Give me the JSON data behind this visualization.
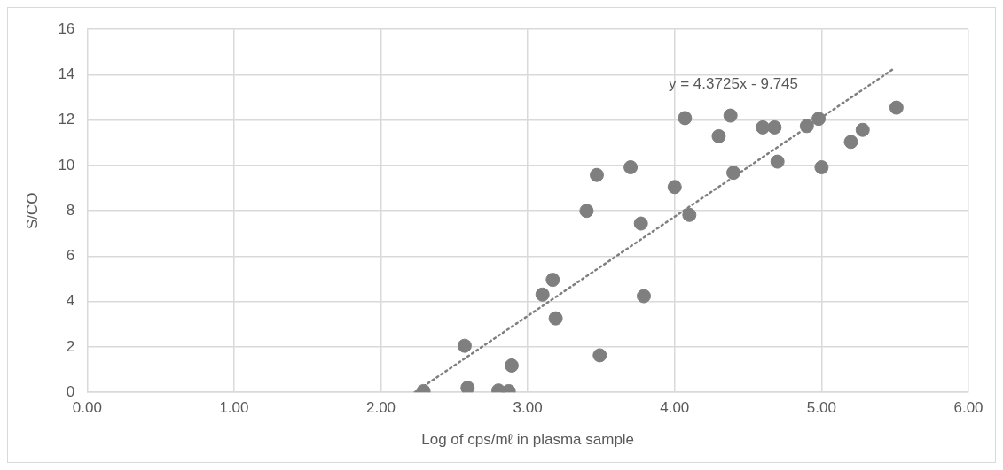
{
  "chart_data": {
    "type": "scatter",
    "xlabel": "Log of cps/mℓ in plasma sample",
    "ylabel": "S/CO",
    "xlim": [
      0,
      6
    ],
    "xticks": [
      {
        "value": 0,
        "label": "0.00"
      },
      {
        "value": 1,
        "label": "1.00"
      },
      {
        "value": 2,
        "label": "2.00"
      },
      {
        "value": 3,
        "label": "3.00"
      },
      {
        "value": 4,
        "label": "4.00"
      },
      {
        "value": 5,
        "label": "5.00"
      },
      {
        "value": 6,
        "label": "6.00"
      }
    ],
    "ylim": [
      0,
      16
    ],
    "yticks": [
      0,
      2,
      4,
      6,
      8,
      10,
      12,
      14,
      16
    ],
    "grid": true,
    "legend": false,
    "marker": "circle",
    "series": [
      {
        "color": "#7f7f7f",
        "x": [
          2.29,
          2.57,
          2.59,
          2.8,
          2.87,
          2.89,
          3.1,
          3.17,
          3.19,
          3.4,
          3.49,
          3.47,
          3.7,
          3.77,
          3.79,
          4.0,
          4.07,
          4.1,
          4.3,
          4.38,
          4.4,
          4.6,
          4.68,
          4.7,
          4.9,
          4.98,
          5.0,
          5.2,
          5.28,
          5.51
        ],
        "values": [
          0.05,
          2.05,
          0.2,
          0.08,
          0.05,
          1.18,
          4.31,
          4.96,
          3.26,
          8.0,
          1.63,
          9.58,
          9.92,
          7.44,
          4.24,
          9.05,
          12.09,
          7.82,
          11.29,
          12.2,
          9.68,
          11.68,
          11.68,
          10.17,
          11.74,
          12.06,
          9.92,
          11.04,
          11.57,
          12.55
        ]
      },
      {
        "type": "line",
        "color": "#7f7f7f",
        "line_style": "dotted",
        "marker": "none",
        "x": [
          2.23,
          5.49
        ],
        "values": [
          0,
          14.26
        ]
      }
    ],
    "annotations": [
      "y = 4.3725x - 9.745"
    ]
  }
}
